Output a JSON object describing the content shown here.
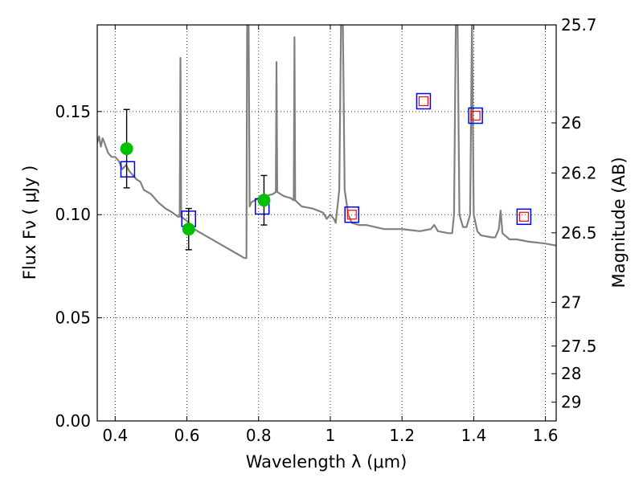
{
  "chart_data": {
    "type": "scatter",
    "title": "",
    "xlabel": "Wavelength  λ (μm)",
    "ylabel": "Flux  Fν  ( μJy )",
    "y2label": "Magnitude (AB)",
    "xlim": [
      0.35,
      1.63
    ],
    "ylim": [
      0.0,
      0.192
    ],
    "grid": true,
    "legend": "none",
    "x_ticks": [
      {
        "v": 0.4,
        "label": "0.4"
      },
      {
        "v": 0.6,
        "label": "0.6"
      },
      {
        "v": 0.8,
        "label": "0.8"
      },
      {
        "v": 1.0,
        "label": "1"
      },
      {
        "v": 1.2,
        "label": "1.2"
      },
      {
        "v": 1.4,
        "label": "1.4"
      },
      {
        "v": 1.6,
        "label": "1.6"
      }
    ],
    "y_ticks": [
      {
        "v": 0.0,
        "label": "0.00"
      },
      {
        "v": 0.05,
        "label": "0.05"
      },
      {
        "v": 0.1,
        "label": "0.10"
      },
      {
        "v": 0.15,
        "label": "0.15"
      }
    ],
    "y2_ticks": [
      {
        "label": "25.7",
        "flux": 0.1923
      },
      {
        "label": "26",
        "flux": 0.1445
      },
      {
        "label": "26.2",
        "flux": 0.1202
      },
      {
        "label": "26.5",
        "flux": 0.0912
      },
      {
        "label": "27",
        "flux": 0.0575
      },
      {
        "label": "27.5",
        "flux": 0.0363
      },
      {
        "label": "28",
        "flux": 0.0229
      },
      {
        "label": "29",
        "flux": 0.0091
      }
    ],
    "series": [
      {
        "kind": "line",
        "color": "#808080",
        "points": [
          [
            0.35,
            0.135
          ],
          [
            0.355,
            0.138
          ],
          [
            0.36,
            0.133
          ],
          [
            0.365,
            0.137
          ],
          [
            0.37,
            0.135
          ],
          [
            0.38,
            0.13
          ],
          [
            0.39,
            0.128
          ],
          [
            0.4,
            0.128
          ],
          [
            0.41,
            0.126
          ],
          [
            0.42,
            0.122
          ],
          [
            0.43,
            0.124
          ],
          [
            0.44,
            0.121
          ],
          [
            0.45,
            0.119
          ],
          [
            0.46,
            0.117
          ],
          [
            0.47,
            0.116
          ],
          [
            0.48,
            0.112
          ],
          [
            0.5,
            0.11
          ],
          [
            0.52,
            0.106
          ],
          [
            0.54,
            0.103
          ],
          [
            0.56,
            0.101
          ],
          [
            0.575,
            0.099
          ],
          [
            0.58,
            0.099
          ],
          [
            0.582,
            0.176
          ],
          [
            0.584,
            0.099
          ],
          [
            0.6,
            0.097
          ],
          [
            0.62,
            0.093
          ],
          [
            0.65,
            0.09
          ],
          [
            0.7,
            0.085
          ],
          [
            0.74,
            0.081
          ],
          [
            0.76,
            0.079
          ],
          [
            0.766,
            0.079
          ],
          [
            0.768,
            0.192
          ],
          [
            0.772,
            0.192
          ],
          [
            0.775,
            0.104
          ],
          [
            0.78,
            0.106
          ],
          [
            0.8,
            0.108
          ],
          [
            0.82,
            0.109
          ],
          [
            0.84,
            0.11
          ],
          [
            0.848,
            0.111
          ],
          [
            0.85,
            0.174
          ],
          [
            0.852,
            0.111
          ],
          [
            0.87,
            0.109
          ],
          [
            0.89,
            0.108
          ],
          [
            0.898,
            0.107
          ],
          [
            0.9,
            0.186
          ],
          [
            0.902,
            0.107
          ],
          [
            0.92,
            0.104
          ],
          [
            0.95,
            0.103
          ],
          [
            0.98,
            0.101
          ],
          [
            0.99,
            0.098
          ],
          [
            1.0,
            0.1
          ],
          [
            1.01,
            0.098
          ],
          [
            1.015,
            0.096
          ],
          [
            1.025,
            0.112
          ],
          [
            1.03,
            0.192
          ],
          [
            1.035,
            0.192
          ],
          [
            1.04,
            0.112
          ],
          [
            1.05,
            0.1
          ],
          [
            1.06,
            0.096
          ],
          [
            1.08,
            0.095
          ],
          [
            1.1,
            0.095
          ],
          [
            1.15,
            0.093
          ],
          [
            1.2,
            0.093
          ],
          [
            1.25,
            0.092
          ],
          [
            1.28,
            0.093
          ],
          [
            1.29,
            0.095
          ],
          [
            1.3,
            0.092
          ],
          [
            1.33,
            0.091
          ],
          [
            1.34,
            0.091
          ],
          [
            1.345,
            0.1
          ],
          [
            1.35,
            0.192
          ],
          [
            1.355,
            0.192
          ],
          [
            1.36,
            0.1
          ],
          [
            1.37,
            0.094
          ],
          [
            1.38,
            0.094
          ],
          [
            1.39,
            0.1
          ],
          [
            1.395,
            0.192
          ],
          [
            1.4,
            0.1
          ],
          [
            1.41,
            0.092
          ],
          [
            1.42,
            0.09
          ],
          [
            1.45,
            0.089
          ],
          [
            1.46,
            0.089
          ],
          [
            1.47,
            0.093
          ],
          [
            1.475,
            0.102
          ],
          [
            1.48,
            0.091
          ],
          [
            1.5,
            0.088
          ],
          [
            1.52,
            0.088
          ],
          [
            1.55,
            0.087
          ],
          [
            1.6,
            0.086
          ],
          [
            1.63,
            0.085
          ]
        ]
      },
      {
        "kind": "blue_squares",
        "color": "#0000ff",
        "points": [
          [
            0.435,
            0.122
          ],
          [
            0.605,
            0.098
          ],
          [
            0.81,
            0.104
          ],
          [
            1.06,
            0.1
          ],
          [
            1.26,
            0.155
          ],
          [
            1.405,
            0.148
          ],
          [
            1.54,
            0.099
          ]
        ]
      },
      {
        "kind": "red_squares",
        "color": "#ff0000",
        "points": [
          [
            1.06,
            0.1
          ],
          [
            1.26,
            0.155
          ],
          [
            1.405,
            0.148
          ],
          [
            1.54,
            0.099
          ]
        ]
      },
      {
        "kind": "green_points",
        "color": "#00c000",
        "points": [
          {
            "x": 0.432,
            "y": 0.132,
            "lo": 0.113,
            "hi": 0.151
          },
          {
            "x": 0.605,
            "y": 0.093,
            "lo": 0.083,
            "hi": 0.103
          },
          {
            "x": 0.815,
            "y": 0.107,
            "lo": 0.095,
            "hi": 0.119
          }
        ]
      }
    ]
  }
}
